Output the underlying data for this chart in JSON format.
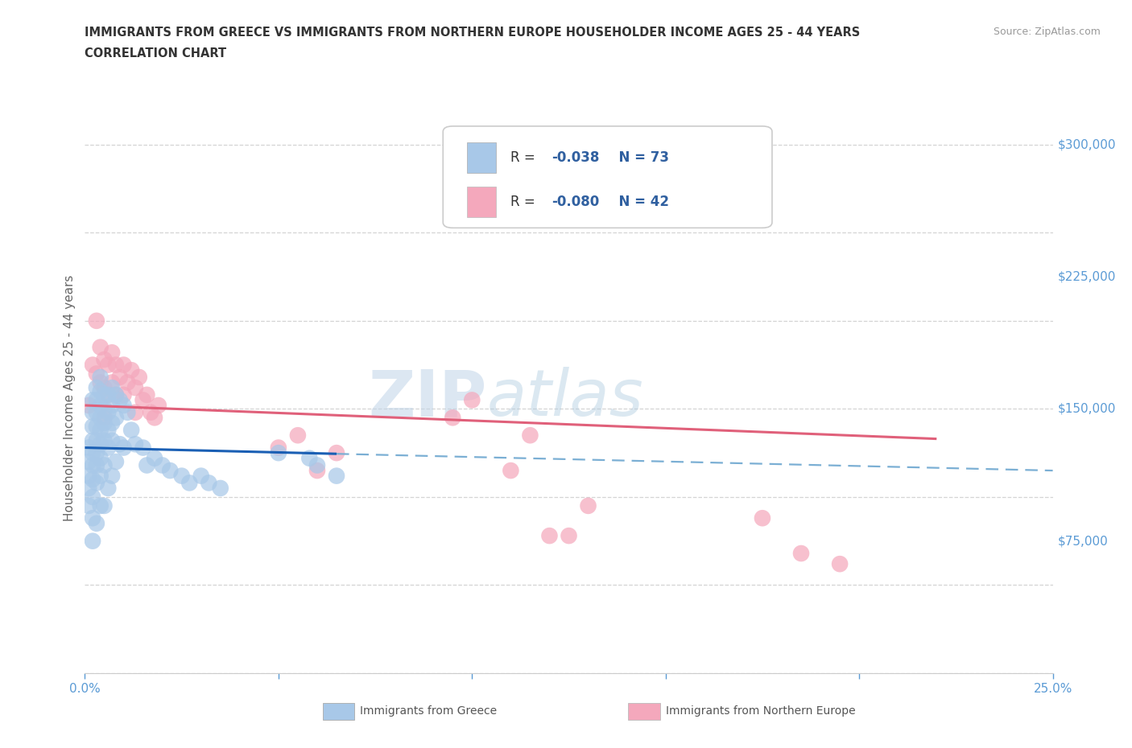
{
  "title_line1": "IMMIGRANTS FROM GREECE VS IMMIGRANTS FROM NORTHERN EUROPE HOUSEHOLDER INCOME AGES 25 - 44 YEARS",
  "title_line2": "CORRELATION CHART",
  "source": "Source: ZipAtlas.com",
  "ylabel": "Householder Income Ages 25 - 44 years",
  "xlim": [
    0,
    0.25
  ],
  "ylim": [
    0,
    312000
  ],
  "ytick_positions": [
    75000,
    150000,
    225000,
    300000
  ],
  "ytick_labels": [
    "$75,000",
    "$150,000",
    "$225,000",
    "$300,000"
  ],
  "greece_color": "#a8c8e8",
  "northern_color": "#f4a8bc",
  "greece_R": -0.038,
  "greece_N": 73,
  "northern_R": -0.08,
  "northern_N": 42,
  "greece_scatter_x": [
    0.001,
    0.001,
    0.001,
    0.001,
    0.001,
    0.002,
    0.002,
    0.002,
    0.002,
    0.002,
    0.002,
    0.002,
    0.002,
    0.002,
    0.002,
    0.003,
    0.003,
    0.003,
    0.003,
    0.003,
    0.003,
    0.003,
    0.003,
    0.003,
    0.004,
    0.004,
    0.004,
    0.004,
    0.004,
    0.004,
    0.004,
    0.004,
    0.004,
    0.005,
    0.005,
    0.005,
    0.005,
    0.005,
    0.005,
    0.006,
    0.006,
    0.006,
    0.006,
    0.006,
    0.007,
    0.007,
    0.007,
    0.007,
    0.007,
    0.008,
    0.008,
    0.008,
    0.009,
    0.009,
    0.01,
    0.01,
    0.011,
    0.012,
    0.013,
    0.015,
    0.016,
    0.018,
    0.02,
    0.022,
    0.025,
    0.027,
    0.03,
    0.032,
    0.035,
    0.05,
    0.058,
    0.06,
    0.065
  ],
  "greece_scatter_y": [
    128000,
    120000,
    112000,
    105000,
    95000,
    155000,
    148000,
    140000,
    132000,
    125000,
    118000,
    110000,
    100000,
    88000,
    75000,
    162000,
    155000,
    148000,
    140000,
    132000,
    125000,
    118000,
    108000,
    85000,
    168000,
    160000,
    152000,
    145000,
    138000,
    130000,
    122000,
    112000,
    95000,
    158000,
    150000,
    142000,
    132000,
    118000,
    95000,
    158000,
    148000,
    138000,
    128000,
    105000,
    162000,
    152000,
    142000,
    132000,
    112000,
    158000,
    145000,
    120000,
    155000,
    130000,
    152000,
    128000,
    148000,
    138000,
    130000,
    128000,
    118000,
    122000,
    118000,
    115000,
    112000,
    108000,
    112000,
    108000,
    105000,
    125000,
    122000,
    118000,
    112000
  ],
  "northern_scatter_x": [
    0.001,
    0.002,
    0.003,
    0.003,
    0.004,
    0.004,
    0.005,
    0.005,
    0.005,
    0.006,
    0.006,
    0.007,
    0.007,
    0.008,
    0.008,
    0.009,
    0.01,
    0.01,
    0.011,
    0.012,
    0.013,
    0.013,
    0.014,
    0.015,
    0.016,
    0.017,
    0.018,
    0.019,
    0.05,
    0.055,
    0.06,
    0.065,
    0.095,
    0.1,
    0.11,
    0.115,
    0.12,
    0.125,
    0.13,
    0.175,
    0.185,
    0.195
  ],
  "northern_scatter_y": [
    152000,
    175000,
    200000,
    170000,
    185000,
    165000,
    178000,
    162000,
    145000,
    175000,
    158000,
    182000,
    165000,
    175000,
    158000,
    168000,
    175000,
    158000,
    165000,
    172000,
    162000,
    148000,
    168000,
    155000,
    158000,
    148000,
    145000,
    152000,
    128000,
    135000,
    115000,
    125000,
    145000,
    155000,
    115000,
    135000,
    78000,
    78000,
    95000,
    88000,
    68000,
    62000
  ],
  "watermark_zip": "ZIP",
  "watermark_atlas": "atlas",
  "background_color": "#ffffff",
  "grid_color": "#d0d0d0",
  "title_color": "#333333",
  "axis_color": "#5b9bd5",
  "legend_color": "#3060a0",
  "greece_line_x": [
    0.0,
    0.065
  ],
  "greece_line_y": [
    128000,
    124500
  ],
  "dashed_line_x": [
    0.065,
    0.25
  ],
  "dashed_line_y": [
    124500,
    115000
  ],
  "northern_line_x": [
    0.0,
    0.22
  ],
  "northern_line_y": [
    152000,
    133000
  ]
}
